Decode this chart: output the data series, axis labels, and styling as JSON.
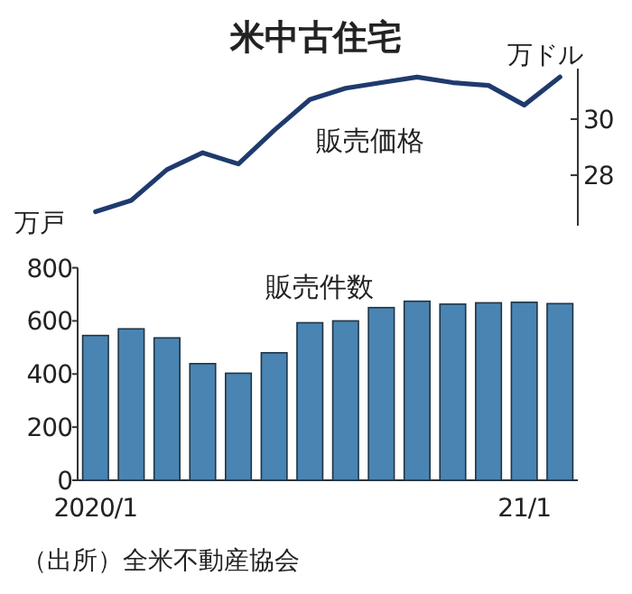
{
  "chart_data": [
    {
      "type": "line",
      "title": "米中古住宅",
      "categories": [
        null,
        null,
        null,
        null,
        null,
        null,
        null,
        null,
        null,
        null,
        null,
        null,
        null,
        null
      ],
      "ylabel": "万ドル",
      "ylim": [
        26.2,
        31.8
      ],
      "yticks": [
        28,
        30
      ],
      "series": [
        {
          "name": "販売価格",
          "color": "#1f3a6e",
          "values": [
            26.7,
            27.1,
            28.2,
            28.8,
            28.4,
            29.6,
            30.7,
            31.1,
            31.3,
            31.5,
            31.3,
            31.2,
            30.5,
            31.5
          ]
        }
      ]
    },
    {
      "type": "bar",
      "categories": [
        "2020/1",
        null,
        null,
        null,
        null,
        null,
        null,
        null,
        null,
        null,
        null,
        null,
        "21/1",
        null
      ],
      "ylabel": "万戸",
      "ylim": [
        0,
        800
      ],
      "yticks": [
        0,
        200,
        400,
        600,
        800
      ],
      "series": [
        {
          "name": "販売件数",
          "color": "#4a84b2",
          "values": [
            545,
            570,
            536,
            439,
            403,
            480,
            593,
            600,
            650,
            674,
            663,
            668,
            670,
            665
          ]
        }
      ],
      "annotations": [
        "（出所）全米不動産協会"
      ]
    }
  ]
}
